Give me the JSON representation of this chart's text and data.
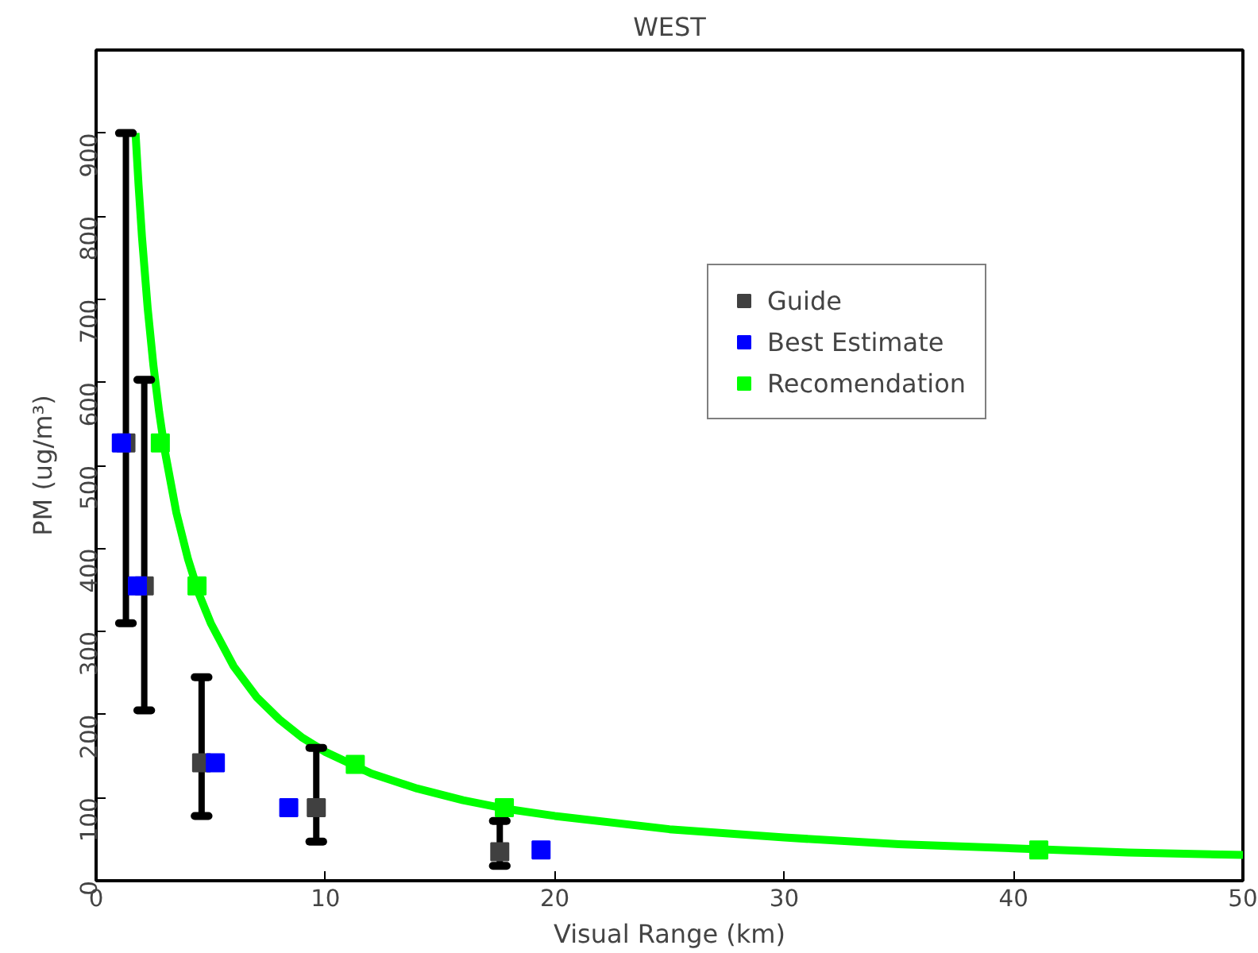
{
  "chart_data": {
    "type": "scatter",
    "title": "WEST",
    "xlabel": "Visual Range (km)",
    "ylabel": "PM (ug/m³)",
    "xlim": [
      0,
      50
    ],
    "xticks": [
      0,
      10,
      20,
      30,
      40,
      50
    ],
    "ylim": [
      0,
      1000
    ],
    "yticks": [
      0,
      100,
      200,
      300,
      400,
      500,
      600,
      700,
      800,
      900
    ],
    "grid": false,
    "legend": "top right",
    "marker": "square",
    "series": [
      {
        "type": "line",
        "marker": "none",
        "color": "#00ff00",
        "x": [
          1.72,
          1.85,
          2,
          2.25,
          2.5,
          2.75,
          3,
          3.5,
          4,
          4.5,
          5,
          6,
          7,
          8,
          9,
          10,
          12,
          14,
          16,
          18,
          20,
          25,
          30,
          35,
          40,
          45,
          50
        ],
        "values": [
          900,
          838,
          775,
          689,
          620,
          564,
          517,
          443,
          388,
          344,
          310,
          258,
          221,
          194,
          172,
          155,
          129,
          111,
          97,
          86,
          78,
          62,
          52,
          44,
          39,
          34,
          31
        ]
      },
      {
        "name": "Guide",
        "color": "#404040",
        "x": [
          1.3,
          2.1,
          4.6,
          9.6,
          17.6
        ],
        "values": [
          527,
          355,
          142,
          88,
          35
        ],
        "errors": [
          [
            310,
            900
          ],
          [
            205,
            603
          ],
          [
            78,
            245
          ],
          [
            47,
            160
          ],
          [
            18,
            72
          ]
        ]
      },
      {
        "name": "Best Estimate",
        "color": "#0000ff",
        "x": [
          1.1,
          1.8,
          5.2,
          8.4,
          19.4
        ],
        "values": [
          527,
          355,
          142,
          88,
          37
        ]
      },
      {
        "name": "Recomendation",
        "color": "#00ff00",
        "x": [
          2.8,
          4.4,
          11.3,
          17.8,
          41.1
        ],
        "values": [
          527,
          355,
          140,
          88,
          37
        ]
      }
    ]
  }
}
